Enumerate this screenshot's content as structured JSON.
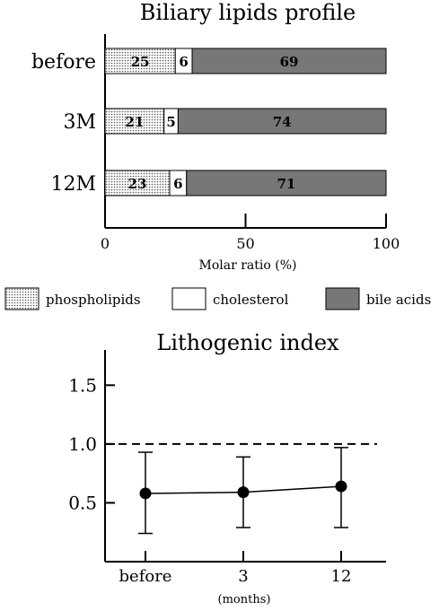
{
  "chart_data": [
    {
      "type": "bar",
      "stacked": true,
      "orientation": "horizontal",
      "title": "Biliary lipids profile",
      "xlabel": "Molar ratio (%)",
      "ylabel": "",
      "xlim": [
        0,
        100
      ],
      "x_ticks": [
        "0",
        "50",
        "100"
      ],
      "categories": [
        "before",
        "3M",
        "12M"
      ],
      "series": [
        {
          "name": "phospholipids",
          "values": [
            25,
            21,
            23
          ],
          "fill": "dotted"
        },
        {
          "name": "cholesterol",
          "values": [
            6,
            5,
            6
          ],
          "fill": "#ffffff"
        },
        {
          "name": "bile acids",
          "values": [
            69,
            74,
            71
          ],
          "fill": "#777777"
        }
      ],
      "legend_position": "bottom"
    },
    {
      "type": "line",
      "title": "Lithogenic index",
      "xlabel": "(months)",
      "ylabel": "",
      "categories": [
        "before",
        "3",
        "12"
      ],
      "ylim": [
        0,
        1.8
      ],
      "y_ticks": [
        "0.5",
        "1.0",
        "1.5"
      ],
      "series": [
        {
          "values": [
            0.58,
            0.59,
            0.64
          ],
          "error_low": [
            0.24,
            0.29,
            0.29
          ],
          "error_high": [
            0.93,
            0.89,
            0.97
          ]
        }
      ],
      "reference_line": {
        "y": 1.0,
        "style": "dashed"
      }
    }
  ]
}
